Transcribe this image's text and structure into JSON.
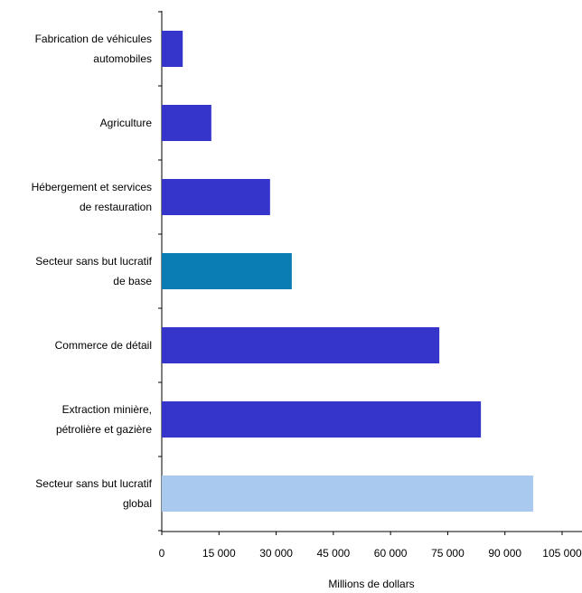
{
  "chart_data": {
    "type": "bar",
    "orientation": "horizontal",
    "categories": [
      "Fabrication de véhicules\nautomobiles",
      "Agriculture",
      "Hébergement et services\nde restauration",
      "Secteur sans but lucratif\nde base",
      "Commerce de détail",
      "Extraction minière,\npétrolière et gazière",
      "Secteur sans but lucratif\nglobal"
    ],
    "values": [
      5500,
      13000,
      28400,
      34100,
      72800,
      83700,
      97400
    ],
    "colors": [
      "#3535cc",
      "#3535cc",
      "#3535cc",
      "#0a7db5",
      "#3535cc",
      "#3535cc",
      "#a9c9ef"
    ],
    "x_label": "Millions de dollars",
    "xlim": [
      0,
      105000
    ],
    "xticks": [
      0,
      {
        "value": 15000,
        "label": "15 000"
      },
      {
        "value": 30000,
        "label": "30 000"
      },
      {
        "value": 45000,
        "label": "45 000"
      },
      {
        "value": 60000,
        "label": "60 000"
      },
      {
        "value": 75000,
        "label": "75 000"
      },
      {
        "value": 90000,
        "label": "90 000"
      },
      {
        "value": 105000,
        "label": "105 000"
      }
    ],
    "grid": false
  }
}
